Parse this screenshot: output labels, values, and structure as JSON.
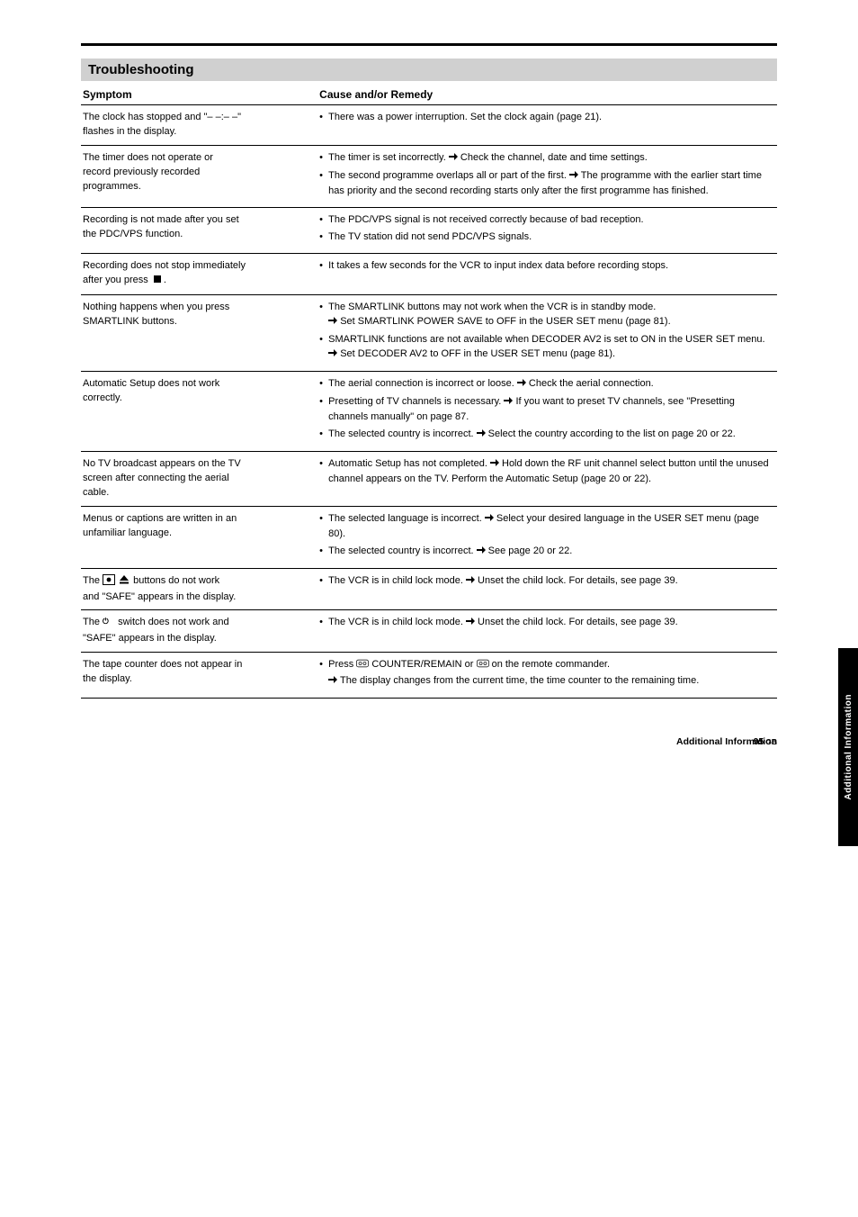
{
  "page": {
    "section_title": "Troubleshooting",
    "columns": {
      "symptom": "Symptom",
      "remedy": "Cause and/or Remedy"
    },
    "rows": [
      {
        "symptom_lines": [
          "The clock has stopped and \"– –:– –\"",
          "flashes in the display."
        ],
        "remedies": [
          {
            "text": "There was a power interruption. Set the clock again (page 21)."
          }
        ]
      },
      {
        "symptom_lines": [
          "The timer does not operate or",
          "record previously recorded",
          "programmes."
        ],
        "remedies": [
          {
            "text": "The timer is set incorrectly.",
            "arrow_after": "text",
            "post": " Check the channel, date and time settings."
          },
          {
            "text": "The second programme overlaps all or part of the first.",
            "arrow_after": "text",
            "post": " The programme with the earlier start time has priority and the second recording starts only after the first programme has finished."
          }
        ]
      },
      {
        "symptom_lines": [
          "Recording is not made after you set",
          "the PDC/VPS function."
        ],
        "remedies": [
          {
            "text": "The PDC/VPS signal is not received correctly because of bad reception."
          },
          {
            "text": "The TV station did not send PDC/VPS signals."
          }
        ]
      },
      {
        "symptom_lines": [
          "Recording does not stop immediately",
          "after you press"
        ],
        "symptom_trailing_icon": "stop",
        "symptom_trailing_text": ".",
        "remedies": [
          {
            "text": "It takes a few seconds for the VCR to input index data before recording stops."
          }
        ]
      },
      {
        "symptom_lines": [
          "Nothing happens when you press",
          "SMARTLINK buttons."
        ],
        "remedies": [
          {
            "text": "The SMARTLINK buttons may not work when the VCR is in standby mode.",
            "arrow_after": "newline",
            "post": "Set SMARTLINK POWER SAVE to OFF in the USER SET menu (page 81)."
          },
          {
            "text": "SMARTLINK functions are not available when DECODER AV2 is set to ON in the USER SET menu.",
            "arrow_after": "newline",
            "post": "Set DECODER AV2 to OFF in the USER SET menu (page 81)."
          }
        ]
      },
      {
        "symptom_lines": [
          "Automatic Setup does not work",
          "correctly."
        ],
        "remedies": [
          {
            "text": "The aerial connection is incorrect or loose.",
            "arrow_after": "text",
            "post": " Check the aerial connection."
          },
          {
            "text": "Presetting of TV channels is necessary.",
            "arrow_after": "text",
            "post": " If you want to preset TV channels, see \"Presetting channels manually\" on page 87."
          },
          {
            "text": "The selected country is incorrect.",
            "arrow_after": "text",
            "post": " Select the country according to the list on page 20 or 22."
          }
        ]
      },
      {
        "symptom_lines": [
          "No TV broadcast appears on the TV",
          "screen after connecting the aerial",
          "cable."
        ],
        "remedies": [
          {
            "text": "Automatic Setup has not completed.",
            "arrow_after": "text",
            "post": " Hold down the RF unit channel select button until the unused channel appears on the TV. Perform the Automatic Setup (page 20 or 22)."
          }
        ]
      },
      {
        "symptom_lines": [
          "Menus or captions are written in an",
          "unfamiliar language."
        ],
        "remedies": [
          {
            "text": "The selected language is incorrect.",
            "arrow_after": "text",
            "post": " Select your desired language in the USER SET menu (page 80)."
          },
          {
            "text": "The selected country is incorrect.",
            "arrow_after": "text",
            "post": " See page 20 or 22."
          }
        ]
      },
      {
        "symptom_lines_with_icons": [
          {
            "pre": "The ",
            "icons": [
              "rec-square",
              "eject"
            ],
            "post": " buttons do not work"
          },
          {
            "pre": "and \"SAFE\" appears in the display."
          }
        ],
        "remedies": [
          {
            "text": "The VCR is in child lock mode.",
            "arrow_after": "text",
            "post": " Unset the child lock. For details, see page 39."
          }
        ]
      },
      {
        "symptom_lines_with_icons": [
          {
            "pre": "The ",
            "icons": [
              "power"
            ],
            "post": " switch does not work and"
          },
          {
            "pre": "\"SAFE\" appears in the display."
          }
        ],
        "remedies": [
          {
            "text": "The VCR is in child lock mode.",
            "arrow_after": "text",
            "post": " Unset the child lock. For details, see page 39."
          }
        ]
      },
      {
        "symptom_lines": [
          "The tape counter does not appear in",
          "the display."
        ],
        "remedies": [
          {
            "text_with_icons": true,
            "text_pre": "Press ",
            "icon1": "counter",
            "mid": " COUNTER/REMAIN or ",
            "icon2": "counter",
            "text_post": " on the remote commander.",
            "arrow_after": "newline",
            "post": "The display changes from the current time, the time counter to the remaining time."
          }
        ]
      }
    ],
    "footer": {
      "chapter": "Additional Information",
      "chapter_sup": "GB",
      "page_num": "95",
      "page_sup": "GB"
    },
    "side_tab": "Additional Information"
  },
  "colors": {
    "header_bg": "#d0d0d0",
    "rule": "#000000",
    "text": "#000000",
    "side_bg": "#000000",
    "side_text": "#ffffff"
  }
}
